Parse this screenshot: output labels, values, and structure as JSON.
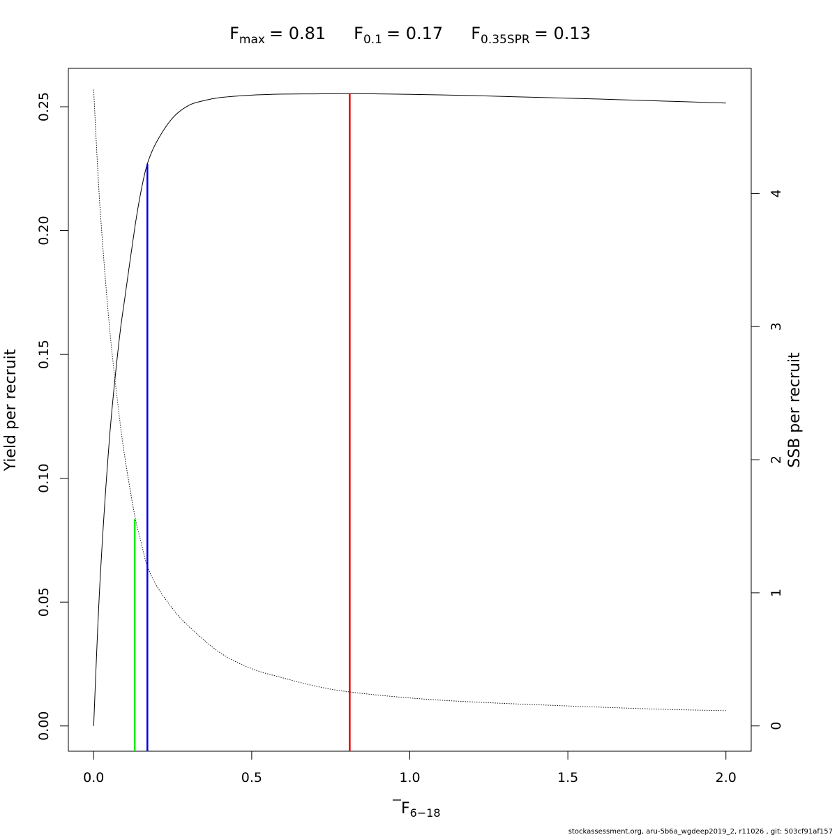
{
  "chart_data": {
    "type": "line",
    "title": {
      "fmax_label": "F",
      "fmax_sub": "max",
      "fmax_value": "= 0.81",
      "f01_label": "F",
      "f01_sub": "0.1",
      "f01_value": "= 0.17",
      "fspr_label": "F",
      "fspr_sub": "0.35SPR",
      "fspr_value": "= 0.13"
    },
    "xlabel": {
      "main": "F",
      "sub": "6−18"
    },
    "ylabel_left": "Yield per recruit",
    "ylabel_right": "SSB per recruit",
    "xlim": [
      -0.08,
      2.08
    ],
    "ylim_left": [
      -0.0102,
      0.2655
    ],
    "ylim_right": [
      -0.19,
      4.94
    ],
    "x_ticks": [
      0.0,
      0.5,
      1.0,
      1.5,
      2.0
    ],
    "x_tick_labels": [
      "0.0",
      "0.5",
      "1.0",
      "1.5",
      "2.0"
    ],
    "y_left_ticks": [
      0.0,
      0.05,
      0.1,
      0.15,
      0.2,
      0.25
    ],
    "y_left_tick_labels": [
      "0.00",
      "0.05",
      "0.10",
      "0.15",
      "0.20",
      "0.25"
    ],
    "y_right_ticks": [
      0,
      1,
      2,
      3,
      4
    ],
    "y_right_tick_labels": [
      "0",
      "1",
      "2",
      "3",
      "4"
    ],
    "grid": false,
    "legend": "none",
    "series": [
      {
        "axis": "left",
        "style": "solid",
        "x": [
          0.0,
          0.02,
          0.05,
          0.08,
          0.1,
          0.13,
          0.15,
          0.17,
          0.2,
          0.25,
          0.3,
          0.35,
          0.4,
          0.5,
          0.6,
          0.7,
          0.81,
          0.9,
          1.0,
          1.2,
          1.4,
          1.6,
          1.8,
          2.0
        ],
        "y": [
          0.0,
          0.058,
          0.116,
          0.155,
          0.174,
          0.201,
          0.216,
          0.227,
          0.236,
          0.2455,
          0.2505,
          0.2525,
          0.2537,
          0.2547,
          0.2551,
          0.2552,
          0.2553,
          0.2552,
          0.255,
          0.2545,
          0.2538,
          0.2531,
          0.2523,
          0.2515
        ]
      },
      {
        "axis": "right",
        "style": "dotted",
        "x": [
          0.0,
          0.02,
          0.05,
          0.08,
          0.1,
          0.13,
          0.15,
          0.17,
          0.2,
          0.25,
          0.3,
          0.4,
          0.5,
          0.6,
          0.7,
          0.81,
          1.0,
          1.2,
          1.5,
          1.8,
          2.0
        ],
        "y": [
          4.78,
          3.9,
          3.0,
          2.35,
          2.0,
          1.58,
          1.38,
          1.2,
          1.05,
          0.88,
          0.75,
          0.55,
          0.43,
          0.36,
          0.3,
          0.255,
          0.21,
          0.18,
          0.15,
          0.125,
          0.115
        ]
      }
    ],
    "reference_lines": [
      {
        "name": "F0.35SPR",
        "x": 0.13,
        "y_top": 0.0835,
        "color": "#00ee00"
      },
      {
        "name": "F0.1",
        "x": 0.17,
        "y_top": 0.227,
        "color": "#0000ee"
      },
      {
        "name": "Fmax",
        "x": 0.81,
        "y_top": 0.2553,
        "color": "#ee0000"
      }
    ]
  },
  "footer": "stockassessment.org, aru-5b6a_wgdeep2019_2, r11026 , git: 503cf91af157"
}
